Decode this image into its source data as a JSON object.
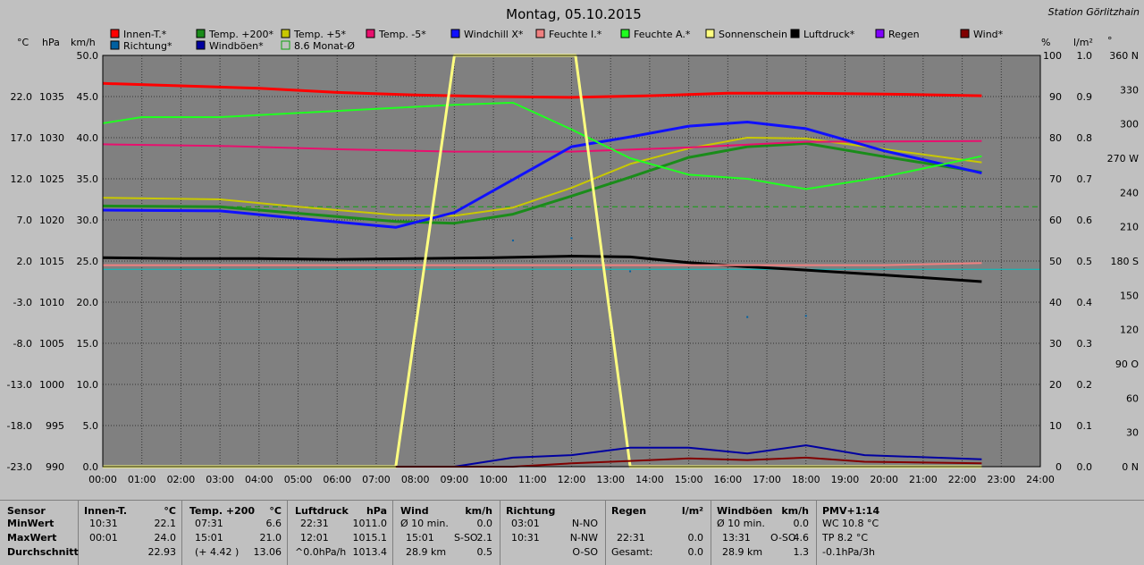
{
  "title": "Montag, 05.10.2015",
  "station": "Station Görlitzhain",
  "colors": {
    "innen": "#ff0000",
    "temp200": "#1a8c1a",
    "temp5": "#c8c800",
    "tempm5": "#e8106e",
    "windchill": "#1010ff",
    "feuchte_i": "#f08080",
    "feuchte_a": "#20ff20",
    "sonne": "#ffff80",
    "luftdruck": "#000000",
    "regen": "#8000ff",
    "wind": "#800000",
    "richtung": "#0060a0",
    "windboen": "#0000a0",
    "monat": "#10a010"
  },
  "legend": [
    {
      "label": "Innen-T.*",
      "color": "#ff0000"
    },
    {
      "label": "Temp. +200*",
      "color": "#1a8c1a"
    },
    {
      "label": "Temp. +5*",
      "color": "#c8c800"
    },
    {
      "label": "Temp. -5*",
      "color": "#e8106e"
    },
    {
      "label": "Windchill X*",
      "color": "#1010ff"
    },
    {
      "label": "Feuchte I.*",
      "color": "#f08080"
    },
    {
      "label": "Feuchte A.*",
      "color": "#20ff20"
    },
    {
      "label": "Sonnenschein",
      "color": "#ffff80"
    },
    {
      "label": "Luftdruck*",
      "color": "#000000"
    },
    {
      "label": "Regen",
      "color": "#8000ff"
    },
    {
      "label": "Wind*",
      "color": "#800000"
    },
    {
      "label": "Richtung*",
      "color": "#0060a0"
    },
    {
      "label": "Windböen*",
      "color": "#0000a0"
    },
    {
      "label": "8.6 Monat-Ø",
      "color": "#10a010"
    }
  ],
  "axis_units": {
    "celsius": "°C",
    "hpa": "hPa",
    "kmh": "km/h",
    "percent": "%",
    "lm2": "l/m²",
    "deg": "°"
  },
  "chart_data": {
    "type": "line",
    "title": "Montag, 05.10.2015",
    "x_ticks": [
      "00:00",
      "01:00",
      "02:00",
      "03:00",
      "04:00",
      "05:00",
      "06:00",
      "07:00",
      "08:00",
      "09:00",
      "10:00",
      "11:00",
      "12:00",
      "13:00",
      "14:00",
      "15:00",
      "16:00",
      "17:00",
      "18:00",
      "19:00",
      "20:00",
      "21:00",
      "22:00",
      "23:00",
      "24:00"
    ],
    "xlim": [
      0,
      24
    ],
    "axes": {
      "celsius": {
        "ticks": [
          "22.0",
          "17.0",
          "12.0",
          "7.0",
          "2.0",
          "-3.0",
          "-8.0",
          "-13.0",
          "-18.0",
          "-23.0"
        ],
        "range": [
          -23,
          27
        ]
      },
      "hpa": {
        "ticks": [
          "1035",
          "1030",
          "1025",
          "1020",
          "1015",
          "1010",
          "1005",
          "1000",
          "995",
          "990"
        ],
        "range": [
          990,
          1040
        ]
      },
      "kmh": {
        "ticks": [
          "50.0",
          "45.0",
          "40.0",
          "35.0",
          "30.0",
          "25.0",
          "20.0",
          "15.0",
          "10.0",
          "5.0",
          "0.0"
        ],
        "range": [
          0,
          50
        ]
      },
      "percent": {
        "ticks": [
          "100",
          "90",
          "80",
          "70",
          "60",
          "50",
          "40",
          "30",
          "20",
          "10",
          "0"
        ],
        "range": [
          0,
          100
        ]
      },
      "lm2": {
        "ticks": [
          "1.0",
          "0.9",
          "0.8",
          "0.7",
          "0.6",
          "0.5",
          "0.4",
          "0.3",
          "0.2",
          "0.1",
          "0.0"
        ],
        "range": [
          0,
          1
        ]
      },
      "deg": {
        "ticks": [
          "360 N",
          "330",
          "300",
          "270 W",
          "240",
          "210",
          "180 S",
          "150",
          "120",
          "90 O",
          "60",
          "30",
          "0 N"
        ],
        "range": [
          0,
          360
        ]
      }
    },
    "series": [
      {
        "name": "Innen-T.*",
        "axis": "celsius",
        "color": "#ff0000",
        "width": 3,
        "x": [
          0,
          2,
          4,
          6,
          8,
          10,
          12,
          14,
          16,
          18,
          20,
          22.5
        ],
        "y": [
          23.6,
          23.3,
          23.0,
          22.5,
          22.2,
          22.0,
          21.9,
          22.1,
          22.4,
          22.4,
          22.3,
          22.1
        ]
      },
      {
        "name": "Temp. +200*",
        "axis": "celsius",
        "color": "#1a8c1a",
        "width": 3,
        "x": [
          0,
          3,
          5,
          7.5,
          9,
          10.5,
          12,
          13.5,
          15,
          16.5,
          18,
          20,
          22.5
        ],
        "y": [
          8.7,
          8.6,
          7.8,
          6.8,
          6.6,
          7.7,
          9.9,
          12.2,
          14.6,
          15.9,
          16.3,
          14.7,
          12.8
        ]
      },
      {
        "name": "Temp. +5*",
        "axis": "celsius",
        "color": "#c8c800",
        "width": 2,
        "x": [
          0,
          3,
          5,
          7.5,
          9,
          10.5,
          12,
          13.5,
          15,
          16.5,
          18,
          20,
          22.5
        ],
        "y": [
          9.7,
          9.5,
          8.6,
          7.6,
          7.5,
          8.5,
          10.9,
          13.8,
          15.7,
          17.0,
          16.9,
          15.6,
          14.0
        ]
      },
      {
        "name": "Temp. -5*",
        "axis": "celsius",
        "color": "#e8106e",
        "width": 2,
        "x": [
          0,
          3,
          6,
          9,
          12,
          15,
          18,
          22.5
        ],
        "y": [
          16.2,
          16.0,
          15.6,
          15.3,
          15.3,
          15.8,
          16.5,
          16.6
        ]
      },
      {
        "name": "Windchill X*",
        "axis": "celsius",
        "color": "#1010ff",
        "width": 3,
        "x": [
          0,
          3,
          5,
          7.5,
          9,
          10.5,
          12,
          13.5,
          15,
          16.5,
          18,
          20,
          22.5
        ],
        "y": [
          8.2,
          8.1,
          7.2,
          6.1,
          7.9,
          11.9,
          15.9,
          17.1,
          18.4,
          18.9,
          18.1,
          15.4,
          12.7
        ]
      },
      {
        "name": "Luftdruck*",
        "axis": "hpa",
        "color": "#000000",
        "width": 3,
        "x": [
          0,
          2,
          4,
          6,
          8,
          10,
          12,
          13.5,
          15,
          16.5,
          18,
          20,
          22.5
        ],
        "y": [
          1015.4,
          1015.3,
          1015.3,
          1015.2,
          1015.3,
          1015.4,
          1015.6,
          1015.5,
          1014.8,
          1014.3,
          1013.9,
          1013.3,
          1012.5
        ]
      },
      {
        "name": "Feuchte I.*",
        "axis": "percent",
        "color": "#f08080",
        "width": 2,
        "x": [
          0,
          4,
          8,
          12,
          16,
          20,
          22.5
        ],
        "y": [
          49,
          49,
          49,
          49,
          49,
          49,
          49.5
        ]
      },
      {
        "name": "Feuchte A.*",
        "axis": "percent",
        "color": "#20ff20",
        "width": 2,
        "x": [
          0,
          1,
          3,
          5,
          7,
          9,
          10.5,
          12,
          13.5,
          15,
          16.5,
          18,
          20,
          22.5
        ],
        "y": [
          83.5,
          85,
          85,
          86,
          87,
          88,
          88.5,
          82,
          75,
          71,
          70,
          67.5,
          70.5,
          75.5
        ]
      },
      {
        "name": "Sonnenschein",
        "axis": "percent",
        "color": "#ffff80",
        "width": 3,
        "x": [
          0,
          7.5,
          9,
          12.1,
          13.5,
          22.5
        ],
        "y": [
          0,
          0,
          100,
          100,
          0,
          0
        ]
      },
      {
        "name": "Windböen*",
        "axis": "kmh",
        "color": "#0000a0",
        "width": 2,
        "x": [
          9,
          10.5,
          12,
          13.5,
          15,
          16.5,
          18,
          19.5,
          22.5
        ],
        "y": [
          0,
          1.1,
          1.4,
          2.3,
          2.3,
          1.6,
          2.6,
          1.4,
          0.9
        ]
      },
      {
        "name": "Wind*",
        "axis": "kmh",
        "color": "#800000",
        "width": 2,
        "x": [
          7.5,
          9,
          10.5,
          12,
          13.5,
          15,
          16.5,
          18,
          19.5,
          22.5
        ],
        "y": [
          0,
          0,
          0,
          0.4,
          0.7,
          1.0,
          0.8,
          1.1,
          0.6,
          0.4
        ]
      }
    ],
    "richtung_points": {
      "axis": "deg",
      "color": "#0060a0",
      "x": [
        10.5,
        12,
        13.5,
        16.5,
        18
      ],
      "y": [
        198,
        200,
        171,
        131,
        132
      ]
    },
    "monat_avg": {
      "label": "8.6 Monat-Ø",
      "axis": "celsius",
      "value": 8.6,
      "color": "#10a010"
    },
    "reference_line": {
      "axis": "percent",
      "value": 48,
      "color": "#00c0c0"
    },
    "grid": true
  },
  "stats": {
    "row_labels": {
      "header": "Sensor",
      "min": "MinWert",
      "max": "MaxWert",
      "avg": "Durchschnitt"
    },
    "innen": {
      "title": "Innen-T.",
      "unit": "°C",
      "min_t": "10:31",
      "min_v": "22.1",
      "max_t": "00:01",
      "max_v": "24.0",
      "avg_v": "22.93"
    },
    "temp": {
      "title": "Temp. +200",
      "unit": "°C",
      "min_t": "07:31",
      "min_v": "6.6",
      "max_t": "15:01",
      "max_v": "21.0",
      "avg_t": "(+ 4.42 )",
      "avg_v": "13.06"
    },
    "druck": {
      "title": "Luftdruck",
      "unit": "hPa",
      "min_t": "22:31",
      "min_v": "1011.0",
      "max_t": "12:01",
      "max_v": "1015.1",
      "avg_t": "^0.0hPa/h",
      "avg_v": "1013.4"
    },
    "wind": {
      "title": "Wind",
      "unit": "km/h",
      "min_t": "Ø 10 min.",
      "min_v": "0.0",
      "max_t": "15:01",
      "max_d": "S-SO",
      "max_v": "2.1",
      "avg_t": "28.9 km",
      "avg_v": "0.5"
    },
    "richtung": {
      "title": "Richtung",
      "min_t": "03:01",
      "min_v": "N-NO",
      "max_t": "10:31",
      "max_v": "N-NW",
      "avg_v": "O-SO"
    },
    "regen": {
      "title": "Regen",
      "unit": "l/m²",
      "max_t": "22:31",
      "max_v": "0.0",
      "avg_t": "Gesamt:",
      "avg_v": "0.0"
    },
    "boen": {
      "title": "Windböen",
      "unit": "km/h",
      "min_t": "Ø 10 min.",
      "min_v": "0.0",
      "max_t": "13:31",
      "max_d": "O-SO",
      "max_v": "4.6",
      "avg_t": "28.9 km",
      "avg_v": "1.3"
    },
    "pmv": {
      "title": "PMV+1:14",
      "min_t": "WC 10.8 °C",
      "max_t": "TP 8.2 °C",
      "avg_t": "-0.1hPa/3h"
    }
  }
}
